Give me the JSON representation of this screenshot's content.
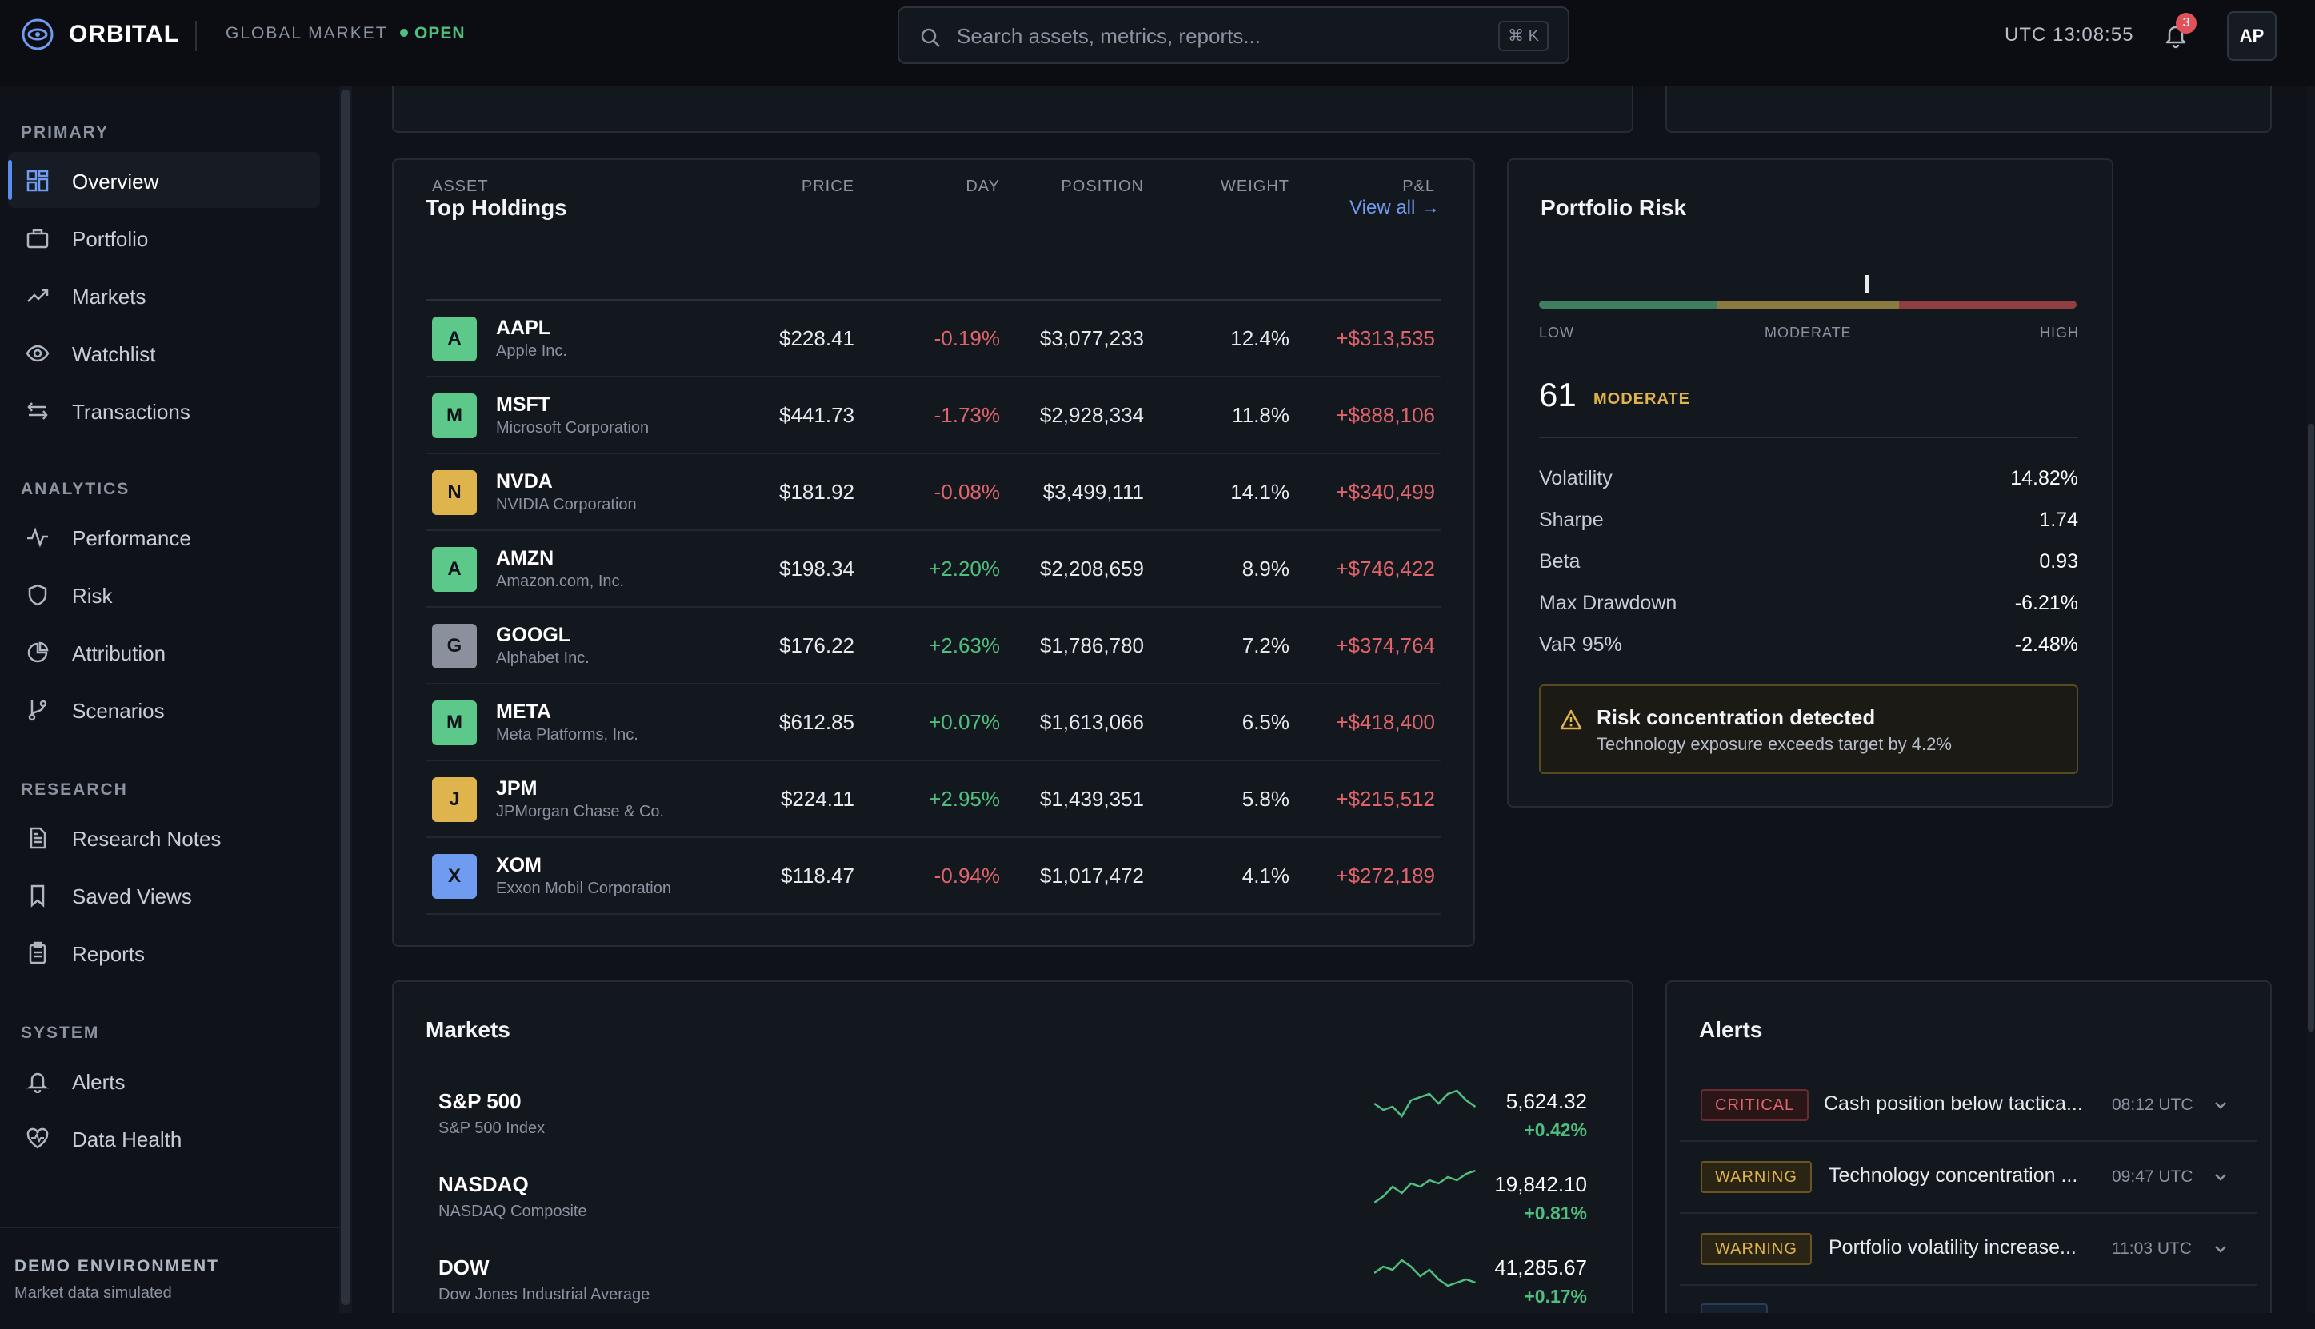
{
  "header": {
    "app_name": "ORBITAL",
    "market_label": "GLOBAL MARKET",
    "market_status": "OPEN",
    "search_placeholder": "Search assets, metrics, reports...",
    "search_shortcut": "⌘ K",
    "clock": "UTC 13:08:55",
    "notification_count": "3",
    "avatar_initials": "AP"
  },
  "sidebar": {
    "sections": [
      {
        "title": "PRIMARY",
        "items": [
          {
            "label": "Overview",
            "icon": "grid-icon",
            "active": true
          },
          {
            "label": "Portfolio",
            "icon": "briefcase-icon"
          },
          {
            "label": "Markets",
            "icon": "trending-up-icon"
          },
          {
            "label": "Watchlist",
            "icon": "eye-icon"
          },
          {
            "label": "Transactions",
            "icon": "arrows-swap-icon"
          }
        ]
      },
      {
        "title": "ANALYTICS",
        "items": [
          {
            "label": "Performance",
            "icon": "activity-icon"
          },
          {
            "label": "Risk",
            "icon": "shield-icon"
          },
          {
            "label": "Attribution",
            "icon": "pie-chart-icon"
          },
          {
            "label": "Scenarios",
            "icon": "git-branch-icon"
          }
        ]
      },
      {
        "title": "RESEARCH",
        "items": [
          {
            "label": "Research Notes",
            "icon": "document-icon"
          },
          {
            "label": "Saved Views",
            "icon": "bookmark-icon"
          },
          {
            "label": "Reports",
            "icon": "clipboard-icon"
          }
        ]
      },
      {
        "title": "SYSTEM",
        "items": [
          {
            "label": "Alerts",
            "icon": "bell-icon"
          },
          {
            "label": "Data Health",
            "icon": "heart-pulse-icon"
          }
        ]
      }
    ],
    "footer_title": "DEMO ENVIRONMENT",
    "footer_subtitle": "Market data simulated"
  },
  "holdings": {
    "title": "Top Holdings",
    "view_all": "View all →",
    "columns": [
      "ASSET",
      "PRICE",
      "DAY",
      "POSITION",
      "WEIGHT",
      "P&L"
    ],
    "rows": [
      {
        "letter": "A",
        "symbol": "AAPL",
        "name": "Apple Inc.",
        "price": "$228.41",
        "day": "-0.19%",
        "position": "$3,077,233",
        "weight": "12.4%",
        "pnl": "+$313,535",
        "color": "#5cc98a"
      },
      {
        "letter": "M",
        "symbol": "MSFT",
        "name": "Microsoft Corporation",
        "price": "$441.73",
        "day": "-1.73%",
        "position": "$2,928,334",
        "weight": "11.8%",
        "pnl": "+$888,106",
        "color": "#5cc98a"
      },
      {
        "letter": "N",
        "symbol": "NVDA",
        "name": "NVIDIA Corporation",
        "price": "$181.92",
        "day": "-0.08%",
        "position": "$3,499,111",
        "weight": "14.1%",
        "pnl": "+$340,499",
        "color": "#e0b44c"
      },
      {
        "letter": "A",
        "symbol": "AMZN",
        "name": "Amazon.com, Inc.",
        "price": "$198.34",
        "day": "+2.20%",
        "position": "$2,208,659",
        "weight": "8.9%",
        "pnl": "+$746,422",
        "color": "#5cc98a"
      },
      {
        "letter": "G",
        "symbol": "GOOGL",
        "name": "Alphabet Inc.",
        "price": "$176.22",
        "day": "+2.63%",
        "position": "$1,786,780",
        "weight": "7.2%",
        "pnl": "+$374,764",
        "color": "#8a909c"
      },
      {
        "letter": "M",
        "symbol": "META",
        "name": "Meta Platforms, Inc.",
        "price": "$612.85",
        "day": "+0.07%",
        "position": "$1,613,066",
        "weight": "6.5%",
        "pnl": "+$418,400",
        "color": "#5cc98a"
      },
      {
        "letter": "J",
        "symbol": "JPM",
        "name": "JPMorgan Chase & Co.",
        "price": "$224.11",
        "day": "+2.95%",
        "position": "$1,439,351",
        "weight": "5.8%",
        "pnl": "+$215,512",
        "color": "#e0b44c"
      },
      {
        "letter": "X",
        "symbol": "XOM",
        "name": "Exxon Mobil Corporation",
        "price": "$118.47",
        "day": "-0.94%",
        "position": "$1,017,472",
        "weight": "4.1%",
        "pnl": "+$272,189",
        "color": "#6f9cf0"
      }
    ]
  },
  "risk": {
    "title": "Portfolio Risk",
    "scale_low": "LOW",
    "scale_mid": "MODERATE",
    "scale_high": "HIGH",
    "score": "61",
    "score_label": "MODERATE",
    "score_fraction": 0.61,
    "metrics": [
      {
        "label": "Volatility",
        "value": "14.82%"
      },
      {
        "label": "Sharpe",
        "value": "1.74"
      },
      {
        "label": "Beta",
        "value": "0.93"
      },
      {
        "label": "Max Drawdown",
        "value": "-6.21%"
      },
      {
        "label": "VaR 95%",
        "value": "-2.48%"
      }
    ],
    "warning_title": "Risk concentration detected",
    "warning_text": "Technology exposure exceeds target by 4.2%"
  },
  "markets": {
    "title": "Markets",
    "items": [
      {
        "name": "S&P 500",
        "sub": "S&P 500 Index",
        "value": "5,624.32",
        "change": "+0.42%"
      },
      {
        "name": "NASDAQ",
        "sub": "NASDAQ Composite",
        "value": "19,842.10",
        "change": "+0.81%"
      },
      {
        "name": "DOW",
        "sub": "Dow Jones Industrial Average",
        "value": "41,285.67",
        "change": "+0.17%"
      }
    ]
  },
  "alerts": {
    "title": "Alerts",
    "items": [
      {
        "level": "CRITICAL",
        "text": "Cash position below tactica...",
        "time": "08:12 UTC"
      },
      {
        "level": "WARNING",
        "text": "Technology concentration ...",
        "time": "09:47 UTC"
      },
      {
        "level": "WARNING",
        "text": "Portfolio volatility increase...",
        "time": "11:03 UTC"
      }
    ]
  },
  "colors": {
    "accent": "#5b8def",
    "positive": "#4fbf7f",
    "negative": "#e0646c",
    "warning": "#e0b44c"
  }
}
